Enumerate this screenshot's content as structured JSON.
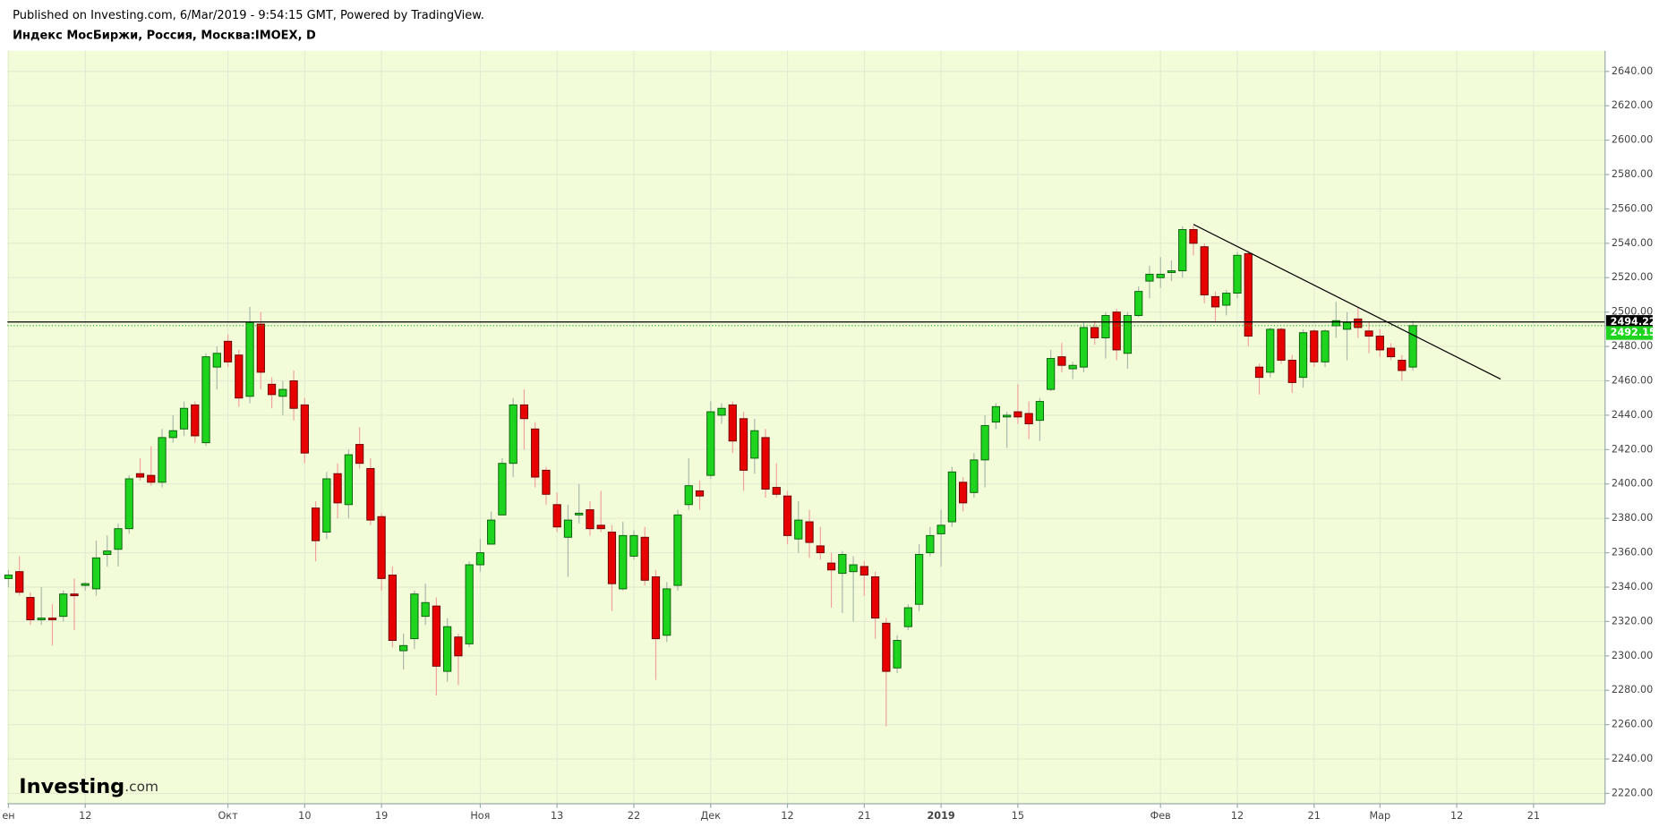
{
  "chart_data": {
    "type": "candlestick",
    "title": "Индекс МосБиржи, Россия, Москва:IMOEX, D",
    "subtitle": "Published on Investing.com, 6/Mar/2019 - 9:54:15 GMT, Powered by TradingView.",
    "watermark_brand": "Investing",
    "watermark_suffix": ".com",
    "categories": [
      "ен",
      null,
      null,
      null,
      null,
      null,
      null,
      "12",
      null,
      null,
      null,
      null,
      null,
      null,
      null,
      null,
      null,
      null,
      null,
      null,
      "Окт",
      null,
      null,
      null,
      null,
      null,
      null,
      "10",
      null,
      null,
      null,
      null,
      null,
      null,
      "19",
      null,
      null,
      null,
      null,
      null,
      null,
      null,
      null,
      "Ноя",
      null,
      null,
      null,
      null,
      null,
      null,
      "13",
      null,
      null,
      null,
      null,
      null,
      null,
      "22",
      null,
      null,
      null,
      null,
      null,
      null,
      "Дек",
      null,
      null,
      null,
      null,
      null,
      null,
      "12",
      null,
      null,
      null,
      null,
      null,
      null,
      "21",
      null,
      null,
      null,
      null,
      null,
      null,
      "2019",
      null,
      null,
      null,
      null,
      null,
      null,
      "15",
      null,
      null,
      null,
      null,
      null,
      null,
      null,
      null,
      null,
      null,
      null,
      null,
      "Фев",
      null,
      null,
      null,
      null,
      null,
      null,
      "12",
      null,
      null,
      null,
      null,
      null,
      null,
      "21",
      null,
      null,
      null,
      null,
      null,
      "Мар",
      null,
      null,
      null,
      null,
      null,
      null,
      "12",
      null,
      null,
      null,
      null,
      null,
      null,
      "21",
      null,
      null,
      null,
      null,
      null,
      null
    ],
    "open": [
      2345,
      2349,
      2334,
      2321,
      2322,
      2323,
      2336,
      2341,
      2339,
      2359,
      2362,
      2374,
      2406,
      2405,
      2401,
      2427,
      2432,
      2446,
      2424,
      2468,
      2483,
      2475,
      2451,
      2493,
      2458,
      2451,
      2460,
      2446,
      2386,
      2372,
      2406,
      2388,
      2423,
      2409,
      2381,
      2347,
      2303,
      2310,
      2323,
      2329,
      2291,
      2311,
      2307,
      2353,
      2365,
      2382,
      2412,
      2446,
      2432,
      2408,
      2388,
      2369,
      2382,
      2385,
      2376,
      2372,
      2339,
      2358,
      2369,
      2346,
      2312,
      2341,
      2388,
      2396,
      2405,
      2440,
      2446,
      2438,
      2415,
      2427,
      2398,
      2393,
      2368,
      2378,
      2364,
      2354,
      2348,
      2349,
      2352,
      2346,
      2319,
      2293,
      2317,
      2330,
      2360,
      2371,
      2378,
      2401,
      2395,
      2414,
      2436,
      2439,
      2442,
      2441,
      2437,
      2455,
      2474,
      2467,
      2468,
      2491,
      2485,
      2500,
      2476,
      2498,
      2518,
      2520,
      2523,
      2524,
      2548,
      2538,
      2509,
      2504,
      2511,
      2534,
      2468,
      2465,
      2490,
      2472,
      2462,
      2489,
      2471,
      2492,
      2490,
      2496,
      2489,
      2486,
      2479,
      2472,
      2468,
      null,
      null,
      null,
      null,
      null,
      null,
      null,
      null,
      null,
      null,
      null,
      null,
      null,
      null,
      null,
      null,
      null
    ],
    "high": [
      2350,
      2358,
      2337,
      2340,
      2330,
      2338,
      2345,
      2343,
      2367,
      2370,
      2377,
      2405,
      2415,
      2422,
      2432,
      2440,
      2448,
      2448,
      2476,
      2480,
      2487,
      2478,
      2503,
      2500,
      2462,
      2460,
      2466,
      2450,
      2390,
      2407,
      2412,
      2420,
      2433,
      2415,
      2383,
      2352,
      2313,
      2338,
      2342,
      2334,
      2322,
      2313,
      2355,
      2368,
      2384,
      2415,
      2450,
      2455,
      2436,
      2410,
      2395,
      2388,
      2400,
      2390,
      2396,
      2376,
      2378,
      2373,
      2375,
      2350,
      2343,
      2385,
      2415,
      2402,
      2448,
      2447,
      2448,
      2442,
      2438,
      2432,
      2412,
      2396,
      2390,
      2385,
      2375,
      2360,
      2361,
      2358,
      2355,
      2349,
      2322,
      2312,
      2330,
      2365,
      2375,
      2385,
      2410,
      2404,
      2418,
      2440,
      2447,
      2442,
      2458,
      2448,
      2450,
      2478,
      2482,
      2471,
      2494,
      2495,
      2500,
      2502,
      2500,
      2515,
      2527,
      2532,
      2530,
      2550,
      2550,
      2540,
      2512,
      2513,
      2535,
      2536,
      2470,
      2491,
      2491,
      2475,
      2490,
      2490,
      2490,
      2506,
      2500,
      2503,
      2494,
      2490,
      2482,
      2475,
      2495,
      null,
      null,
      null,
      null,
      null,
      null,
      null,
      null,
      null,
      null,
      null,
      null,
      null,
      null,
      null,
      null,
      null
    ],
    "low": [
      2340,
      2335,
      2318,
      2318,
      2306,
      2320,
      2315,
      2338,
      2335,
      2352,
      2352,
      2371,
      2402,
      2399,
      2398,
      2424,
      2428,
      2424,
      2422,
      2455,
      2468,
      2445,
      2447,
      2455,
      2444,
      2440,
      2437,
      2412,
      2355,
      2368,
      2380,
      2380,
      2409,
      2376,
      2338,
      2305,
      2292,
      2304,
      2318,
      2277,
      2285,
      2283,
      2305,
      2349,
      2365,
      2382,
      2404,
      2420,
      2398,
      2388,
      2372,
      2346,
      2377,
      2370,
      2372,
      2326,
      2338,
      2356,
      2341,
      2286,
      2308,
      2338,
      2385,
      2385,
      2403,
      2435,
      2418,
      2396,
      2406,
      2392,
      2392,
      2365,
      2360,
      2357,
      2356,
      2328,
      2325,
      2320,
      2335,
      2310,
      2259,
      2290,
      2315,
      2326,
      2358,
      2352,
      2375,
      2384,
      2392,
      2398,
      2432,
      2421,
      2435,
      2426,
      2425,
      2454,
      2465,
      2461,
      2465,
      2481,
      2473,
      2472,
      2467,
      2497,
      2508,
      2514,
      2518,
      2520,
      2533,
      2505,
      2494,
      2498,
      2508,
      2480,
      2452,
      2462,
      2470,
      2453,
      2456,
      2468,
      2468,
      2485,
      2472,
      2485,
      2476,
      2474,
      2472,
      2460,
      2466,
      null,
      null,
      null,
      null,
      null,
      null,
      null,
      null,
      null,
      null,
      null,
      null,
      null,
      null,
      null,
      null,
      null
    ],
    "close": [
      2347,
      2337,
      2321,
      2322,
      2321,
      2336,
      2335,
      2342,
      2357,
      2361,
      2374,
      2403,
      2404,
      2401,
      2427,
      2431,
      2444,
      2428,
      2474,
      2476,
      2471,
      2450,
      2494,
      2465,
      2452,
      2455,
      2444,
      2418,
      2367,
      2403,
      2389,
      2417,
      2412,
      2379,
      2345,
      2309,
      2306,
      2336,
      2331,
      2294,
      2317,
      2300,
      2353,
      2360,
      2379,
      2412,
      2446,
      2438,
      2404,
      2394,
      2375,
      2379,
      2383,
      2374,
      2374,
      2342,
      2370,
      2370,
      2344,
      2310,
      2339,
      2382,
      2399,
      2393,
      2442,
      2444,
      2425,
      2408,
      2431,
      2397,
      2394,
      2370,
      2379,
      2366,
      2360,
      2350,
      2359,
      2353,
      2347,
      2322,
      2291,
      2309,
      2328,
      2359,
      2370,
      2376,
      2407,
      2389,
      2414,
      2434,
      2445,
      2440,
      2439,
      2435,
      2448,
      2473,
      2469,
      2469,
      2491,
      2485,
      2498,
      2478,
      2498,
      2512,
      2522,
      2522,
      2524,
      2548,
      2540,
      2510,
      2503,
      2511,
      2533,
      2486,
      2462,
      2490,
      2472,
      2459,
      2488,
      2471,
      2489,
      2495,
      2494,
      2491,
      2486,
      2478,
      2474,
      2466,
      2492.15,
      null,
      null,
      null,
      null,
      null,
      null,
      null,
      null,
      null,
      null,
      null,
      null,
      null,
      null,
      null,
      null,
      null
    ],
    "up_color": "#1ed41e",
    "down_color": "#e60000",
    "ylim": [
      2214,
      2652
    ],
    "yticks": [
      {
        "value": 2220,
        "label": "2220.00"
      },
      {
        "value": 2240,
        "label": "2240.00"
      },
      {
        "value": 2260,
        "label": "2260.00"
      },
      {
        "value": 2280,
        "label": "2280.00"
      },
      {
        "value": 2300,
        "label": "2300.00"
      },
      {
        "value": 2320,
        "label": "2320.00"
      },
      {
        "value": 2340,
        "label": "2340.00"
      },
      {
        "value": 2360,
        "label": "2360.00"
      },
      {
        "value": 2380,
        "label": "2380.00"
      },
      {
        "value": 2400,
        "label": "2400.00"
      },
      {
        "value": 2420,
        "label": "2420.00"
      },
      {
        "value": 2440,
        "label": "2440.00"
      },
      {
        "value": 2460,
        "label": "2460.00"
      },
      {
        "value": 2480,
        "label": "2480.00"
      },
      {
        "value": 2500,
        "label": "2500.00"
      },
      {
        "value": 2520,
        "label": "2520.00"
      },
      {
        "value": 2540,
        "label": "2540.00"
      },
      {
        "value": 2560,
        "label": "2560.00"
      },
      {
        "value": 2580,
        "label": "2580.00"
      },
      {
        "value": 2600,
        "label": "2600.00"
      },
      {
        "value": 2620,
        "label": "2620.00"
      },
      {
        "value": 2640,
        "label": "2640.00"
      }
    ],
    "grid": true,
    "hline": 2494.22,
    "trendline": {
      "x": [
        108,
        136
      ],
      "y": [
        2551,
        2461
      ]
    }
  }
}
